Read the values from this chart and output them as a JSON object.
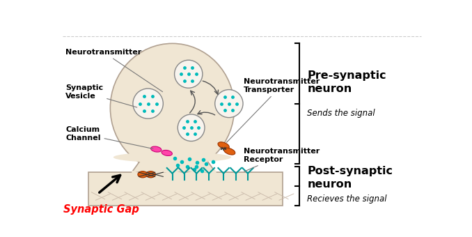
{
  "bg_color": "#ffffff",
  "neuron_color": "#f0e6d3",
  "neuron_outline": "#b0a090",
  "post_color": "#f0e6d3",
  "post_outline": "#b0a090",
  "vesicle_fill": "#f8f4ee",
  "vesicle_outline": "#888888",
  "dot_color": "#00bbbb",
  "calcium_color": "#ff44aa",
  "calcium_outline": "#cc0077",
  "transporter_color": "#e06010",
  "transporter_outline": "#993300",
  "receptor_color": "#009999",
  "label_color": "#000000",
  "arrow_color": "#333333",
  "synaptic_gap_color": "#ff0000",
  "pre_label": "Pre-synaptic\nneuron",
  "pre_sublabel": "Sends the signal",
  "post_label": "Post-synaptic\nneuron",
  "post_sublabel": "Recieves the signal",
  "neurotransmitter_label": "Neurotransmitter",
  "vesicle_label": "Synaptic\nVesicle",
  "calcium_label": "Calcium\nChannel",
  "transporter_label": "Neurotransmitter\nTransporter",
  "receptor_label": "Neurotransmitter\nReceptor",
  "synaptic_gap_label": "Synaptic Gap"
}
